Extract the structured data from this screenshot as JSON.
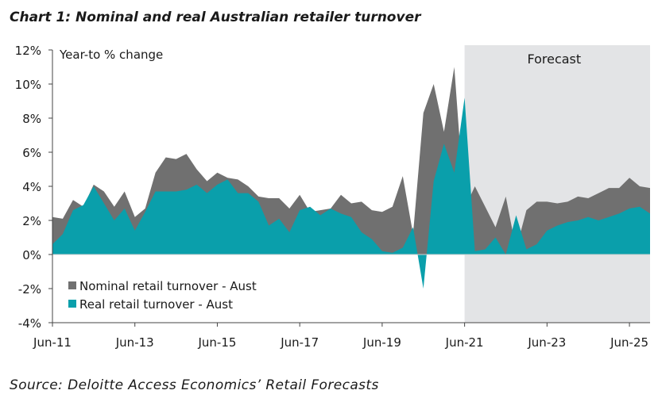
{
  "title": "Chart 1: Nominal and real Australian retailer turnover",
  "source": "Source: Deloitte Access Economics’ Retail Forecasts",
  "chart_data": {
    "type": "area",
    "ylabel": "Year-to % change",
    "ylim": [
      -4,
      12
    ],
    "yticks": [
      -4,
      -2,
      0,
      2,
      4,
      6,
      8,
      10,
      12
    ],
    "ytick_labels": [
      "-4%",
      "-2%",
      "0%",
      "2%",
      "4%",
      "6%",
      "8%",
      "10%",
      "12%"
    ],
    "xlim": [
      2011.42,
      2025.92
    ],
    "xticks": [
      2011.42,
      2013.42,
      2015.42,
      2017.42,
      2019.42,
      2021.42,
      2023.42,
      2025.42
    ],
    "xtick_labels": [
      "Jun-11",
      "Jun-13",
      "Jun-15",
      "Jun-17",
      "Jun-19",
      "Jun-21",
      "Jun-23",
      "Jun-25"
    ],
    "forecast_region": {
      "label": "Forecast",
      "start": 2021.42,
      "end": 2025.92
    },
    "colors": {
      "nominal": "#707070",
      "real": "#0a9fab",
      "forecast": "#e3e4e6"
    },
    "series": [
      {
        "name": "Nominal retail turnover - Aust",
        "color": "#707070",
        "x": [
          2011.42,
          2011.67,
          2011.92,
          2012.17,
          2012.42,
          2012.67,
          2012.92,
          2013.17,
          2013.42,
          2013.67,
          2013.92,
          2014.17,
          2014.42,
          2014.67,
          2014.92,
          2015.17,
          2015.42,
          2015.67,
          2015.92,
          2016.17,
          2016.42,
          2016.67,
          2016.92,
          2017.17,
          2017.42,
          2017.67,
          2017.92,
          2018.17,
          2018.42,
          2018.67,
          2018.92,
          2019.17,
          2019.42,
          2019.67,
          2019.92,
          2020.17,
          2020.42,
          2020.67,
          2020.92,
          2021.17,
          2021.42,
          2021.67,
          2021.92,
          2022.17,
          2022.42,
          2022.67,
          2022.92,
          2023.17,
          2023.42,
          2023.67,
          2023.92,
          2024.17,
          2024.42,
          2024.67,
          2024.92,
          2025.17,
          2025.42,
          2025.67,
          2025.92
        ],
        "values": [
          2.2,
          2.1,
          3.2,
          2.8,
          4.1,
          3.7,
          2.8,
          3.7,
          2.2,
          2.7,
          4.8,
          5.7,
          5.6,
          5.9,
          5.0,
          4.3,
          4.8,
          4.5,
          4.4,
          4.0,
          3.4,
          3.3,
          3.3,
          2.7,
          3.5,
          2.5,
          2.6,
          2.7,
          3.5,
          3.0,
          3.1,
          2.6,
          2.5,
          2.8,
          4.6,
          1.2,
          8.3,
          10.0,
          7.2,
          11.0,
          2.7,
          4.0,
          2.8,
          1.6,
          3.4,
          0.3,
          2.6,
          3.1,
          3.1,
          3.0,
          3.1,
          3.4,
          3.3,
          3.6,
          3.9,
          3.9,
          4.5,
          4.0,
          3.9
        ]
      },
      {
        "name": "Real retail turnover - Aust",
        "color": "#0a9fab",
        "x": [
          2011.42,
          2011.67,
          2011.92,
          2012.17,
          2012.42,
          2012.67,
          2012.92,
          2013.17,
          2013.42,
          2013.67,
          2013.92,
          2014.17,
          2014.42,
          2014.67,
          2014.92,
          2015.17,
          2015.42,
          2015.67,
          2015.92,
          2016.17,
          2016.42,
          2016.67,
          2016.92,
          2017.17,
          2017.42,
          2017.67,
          2017.92,
          2018.17,
          2018.42,
          2018.67,
          2018.92,
          2019.17,
          2019.42,
          2019.67,
          2019.92,
          2020.17,
          2020.42,
          2020.67,
          2020.92,
          2021.17,
          2021.42,
          2021.67,
          2021.92,
          2022.17,
          2022.42,
          2022.67,
          2022.92,
          2023.17,
          2023.42,
          2023.67,
          2023.92,
          2024.17,
          2024.42,
          2024.67,
          2024.92,
          2025.17,
          2025.42,
          2025.67,
          2025.92
        ],
        "values": [
          0.6,
          1.2,
          2.6,
          2.9,
          4.0,
          3.0,
          2.0,
          2.7,
          1.4,
          2.5,
          3.7,
          3.7,
          3.7,
          3.8,
          4.1,
          3.6,
          4.1,
          4.4,
          3.6,
          3.6,
          3.1,
          1.7,
          2.1,
          1.3,
          2.6,
          2.8,
          2.3,
          2.7,
          2.4,
          2.2,
          1.3,
          0.9,
          0.2,
          0.1,
          0.4,
          1.6,
          -2.0,
          4.3,
          6.5,
          4.8,
          9.2,
          0.2,
          0.3,
          1.0,
          0.0,
          2.3,
          0.3,
          0.6,
          1.4,
          1.7,
          1.9,
          2.0,
          2.2,
          2.0,
          2.2,
          2.4,
          2.7,
          2.8,
          2.4
        ]
      }
    ]
  }
}
